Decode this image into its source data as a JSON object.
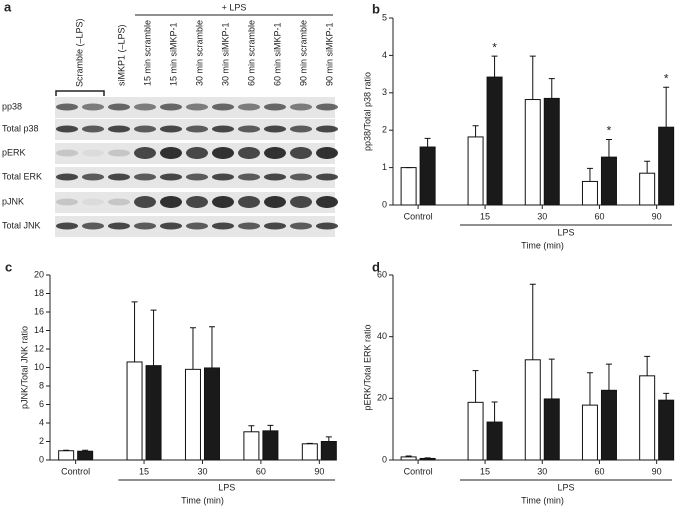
{
  "blot": {
    "panel": "a",
    "lps_label": "+ LPS",
    "lanes": [
      "Scramble (–LPS)",
      "siMKP1 (–LPS)",
      "15 min scramble",
      "15 min siMKP-1",
      "30 min scramble",
      "30 min siMKP-1",
      "60 min scramble",
      "60 min siMKP-1",
      "90 min scramble",
      "90 min siMKP-1"
    ],
    "rows": [
      "pp38",
      "Total p38",
      "pERK",
      "Total ERK",
      "pJNK",
      "Total JNK"
    ]
  },
  "chart_data": [
    {
      "type": "bar",
      "panel": "b",
      "categories": [
        "Control",
        "15",
        "30",
        "60",
        "90"
      ],
      "group_label": "LPS",
      "xlabel": "Time (min)",
      "ylabel": "pp38/Total p38 ratio",
      "ylim": [
        0,
        5
      ],
      "yticks": [
        0,
        1,
        2,
        3,
        4,
        5
      ],
      "series": [
        {
          "color": "#ffffff",
          "values": [
            1.0,
            1.82,
            2.82,
            0.63,
            0.85
          ],
          "errors": [
            0,
            0.3,
            1.16,
            0.35,
            0.32
          ]
        },
        {
          "color": "#1a1a1a",
          "values": [
            1.55,
            3.42,
            2.85,
            1.28,
            2.08
          ],
          "errors": [
            0.23,
            0.56,
            0.53,
            0.47,
            1.07
          ]
        }
      ],
      "annotations": [
        {
          "text": "*",
          "category": "15"
        },
        {
          "text": "*",
          "category": "60"
        },
        {
          "text": "*",
          "category": "90"
        }
      ]
    },
    {
      "type": "bar",
      "panel": "c",
      "categories": [
        "Control",
        "15",
        "30",
        "60",
        "90"
      ],
      "group_label": "LPS",
      "xlabel": "Time (min)",
      "ylabel": "pJNK/Total JNK ratio",
      "ylim": [
        0,
        20
      ],
      "yticks": [
        0,
        2,
        4,
        6,
        8,
        10,
        12,
        14,
        16,
        18,
        20
      ],
      "series": [
        {
          "color": "#ffffff",
          "values": [
            1.0,
            10.6,
            9.8,
            3.05,
            1.75
          ],
          "errors": [
            0.05,
            6.5,
            4.5,
            0.65,
            0.05
          ]
        },
        {
          "color": "#1a1a1a",
          "values": [
            0.95,
            10.2,
            9.95,
            3.15,
            2.0
          ],
          "errors": [
            0.1,
            6.0,
            4.45,
            0.6,
            0.5
          ]
        }
      ]
    },
    {
      "type": "bar",
      "panel": "d",
      "categories": [
        "Control",
        "15",
        "30",
        "60",
        "90"
      ],
      "group_label": "LPS",
      "xlabel": "Time (min)",
      "ylabel": "pERK/Total ERK ratio",
      "ylim": [
        0,
        60
      ],
      "yticks": [
        0,
        20,
        40,
        60
      ],
      "series": [
        {
          "color": "#ffffff",
          "values": [
            1.0,
            18.7,
            32.5,
            17.8,
            27.3
          ],
          "errors": [
            0.3,
            10.3,
            24.5,
            10.5,
            6.3
          ]
        },
        {
          "color": "#1a1a1a",
          "values": [
            0.5,
            12.3,
            19.8,
            22.6,
            19.4
          ],
          "errors": [
            0.2,
            6.5,
            12.9,
            8.5,
            2.2
          ]
        }
      ]
    }
  ]
}
